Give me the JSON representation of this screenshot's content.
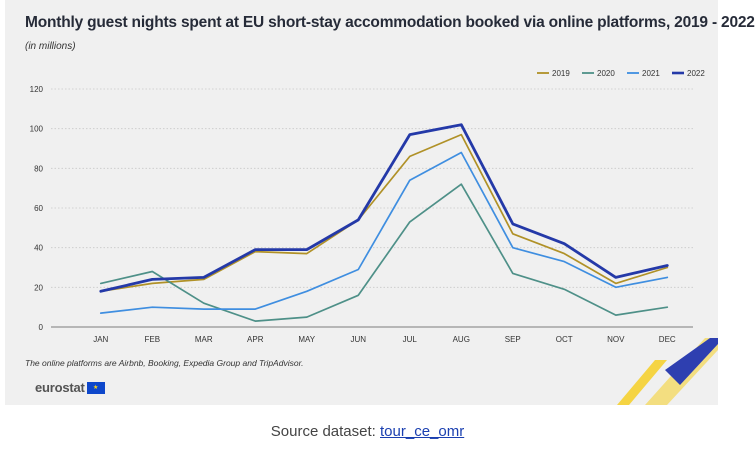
{
  "title": "Monthly guest nights spent at EU short-stay accommodation booked via online platforms, 2019 - 2022",
  "subtitle": "(in millions)",
  "footnote": "The online platforms are Airbnb, Booking, Expedia Group and TripAdvisor.",
  "brand": {
    "text": "eurostat",
    "flag_icon": "eu-flag-icon",
    "flag_glyph": "★"
  },
  "source": {
    "prefix": "Source dataset: ",
    "link_text": "tour_ce_omr"
  },
  "colors": {
    "2019": "#b09127",
    "2020": "#4e9088",
    "2021": "#3f8ee0",
    "2022": "#2439a8",
    "grid": "#c8c8c8",
    "corner_blue": "#2e3fb0",
    "corner_yellow": "#f6cf24"
  },
  "chart_data": {
    "type": "line",
    "x": [
      "JAN",
      "FEB",
      "MAR",
      "APR",
      "MAY",
      "JUN",
      "JUL",
      "AUG",
      "SEP",
      "OCT",
      "NOV",
      "DEC"
    ],
    "ylim": [
      0,
      120
    ],
    "yticks": [
      "0",
      "20",
      "40",
      "60",
      "80",
      "100",
      "120"
    ],
    "grid": true,
    "legend_position": "top-right",
    "series": [
      {
        "name": "2019",
        "values": [
          18,
          22,
          24,
          38,
          37,
          54,
          86,
          97,
          47,
          37,
          22,
          30
        ]
      },
      {
        "name": "2020",
        "values": [
          22,
          28,
          12,
          3,
          5,
          16,
          53,
          72,
          27,
          19,
          6,
          10
        ]
      },
      {
        "name": "2021",
        "values": [
          7,
          10,
          9,
          9,
          18,
          29,
          74,
          88,
          40,
          33,
          20,
          25
        ]
      },
      {
        "name": "2022",
        "values": [
          18,
          24,
          25,
          39,
          39,
          54,
          97,
          102,
          52,
          42,
          25,
          31
        ]
      }
    ]
  }
}
